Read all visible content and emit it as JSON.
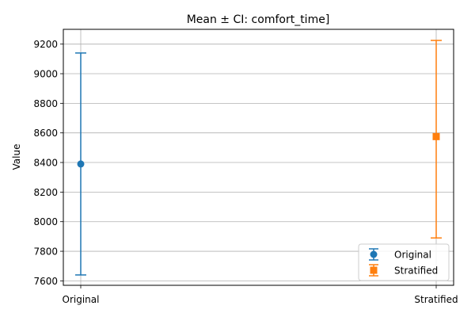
{
  "chart_data": {
    "type": "scatter",
    "title": "Mean ± CI: comfort_time]",
    "xlabel": "",
    "ylabel": "Value",
    "categories": [
      "Original",
      "Stratified"
    ],
    "ylim": [
      7570,
      9300
    ],
    "yticks": [
      7600,
      7800,
      8000,
      8200,
      8400,
      8600,
      8800,
      9000,
      9200
    ],
    "grid": true,
    "legend_position": "lower-right",
    "series": [
      {
        "name": "Original",
        "x": "Original",
        "mean": 8390,
        "ci_low": 7640,
        "ci_high": 9140,
        "color": "#1f77b4",
        "marker": "circle"
      },
      {
        "name": "Stratified",
        "x": "Stratified",
        "mean": 8575,
        "ci_low": 7890,
        "ci_high": 9225,
        "color": "#ff7f0e",
        "marker": "square"
      }
    ]
  }
}
